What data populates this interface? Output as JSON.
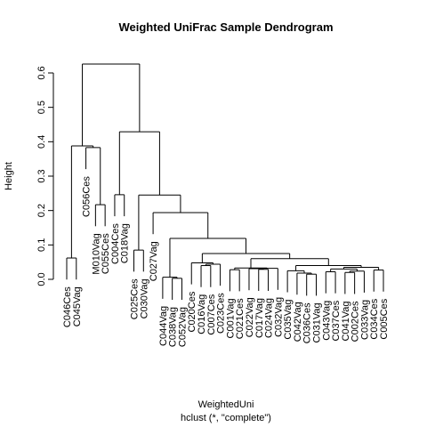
{
  "chart_data": {
    "type": "dendrogram",
    "title": "Weighted UniFrac Sample Dendrogram",
    "ylabel": "Height",
    "xlabel": "WeightedUni",
    "subtitle": "hclust (*, \"complete\")",
    "ylim": [
      0,
      0.6
    ],
    "yticks": [
      {
        "value": 0,
        "label": "0.0"
      },
      0.1,
      0.2,
      0.3,
      0.4,
      0.5,
      0.6
    ],
    "color": "#000000",
    "leaves": [
      "C046Ces",
      "C045Vag",
      "C056Ces",
      "M010Vag",
      "C055Ces",
      "C004Ces",
      "C018Vag",
      "C025Ces",
      "C030Vag",
      "C027Vag",
      "C044Vag",
      "C038Vag",
      "C052Vag",
      "C020Ces",
      "C016Vag",
      "C007Ces",
      "C023Ces",
      "C001Vag",
      "C021Ces",
      "C022Vag",
      "C017Vag",
      "C024Vag",
      "C032Vag",
      "C035Vag",
      "C042Vag",
      "C036Ces",
      "C031Vag",
      "C043Vag",
      "C037Ces",
      "C041Vag",
      "C002Ces",
      "C033Vag",
      "C034Ces",
      "C005Ces"
    ],
    "merges": [
      {
        "left": -12,
        "right": -13,
        "height": 0.003
      },
      {
        "left": -11,
        "right": 1,
        "height": 0.006
      },
      {
        "left": -15,
        "right": -16,
        "height": 0.04
      },
      {
        "left": 3,
        "right": -17,
        "height": 0.044
      },
      {
        "left": -14,
        "right": 4,
        "height": 0.048
      },
      {
        "left": -18,
        "right": -19,
        "height": 0.028
      },
      {
        "left": -21,
        "right": -22,
        "height": 0.029
      },
      {
        "left": -20,
        "right": 7,
        "height": 0.031
      },
      {
        "left": 8,
        "right": -23,
        "height": 0.032
      },
      {
        "left": 6,
        "right": 9,
        "height": 0.033
      },
      {
        "left": -26,
        "right": -27,
        "height": 0.015
      },
      {
        "left": -25,
        "right": 11,
        "height": 0.018
      },
      {
        "left": -24,
        "right": 12,
        "height": 0.025
      },
      {
        "left": -28,
        "right": -29,
        "height": 0.022
      },
      {
        "left": -30,
        "right": -31,
        "height": 0.02
      },
      {
        "left": 15,
        "right": -32,
        "height": 0.024
      },
      {
        "left": 14,
        "right": 16,
        "height": 0.03
      },
      {
        "left": -33,
        "right": -34,
        "height": 0.027
      },
      {
        "left": 17,
        "right": 18,
        "height": 0.035
      },
      {
        "left": 13,
        "right": 19,
        "height": 0.04
      },
      {
        "left": 10,
        "right": 20,
        "height": 0.06
      },
      {
        "left": 5,
        "right": 21,
        "height": 0.075
      },
      {
        "left": 2,
        "right": 22,
        "height": 0.119
      },
      {
        "left": -10,
        "right": 23,
        "height": 0.194
      },
      {
        "left": -8,
        "right": -9,
        "height": 0.085
      },
      {
        "left": 25,
        "right": 24,
        "height": 0.245
      },
      {
        "left": -6,
        "right": -7,
        "height": 0.246
      },
      {
        "left": 27,
        "right": 26,
        "height": 0.429
      },
      {
        "left": -4,
        "right": -5,
        "height": 0.217
      },
      {
        "left": -3,
        "right": 29,
        "height": 0.383
      },
      {
        "left": -1,
        "right": -2,
        "height": 0.062
      },
      {
        "left": 31,
        "right": 30,
        "height": 0.388
      },
      {
        "left": 32,
        "right": 28,
        "height": 0.626
      }
    ]
  }
}
